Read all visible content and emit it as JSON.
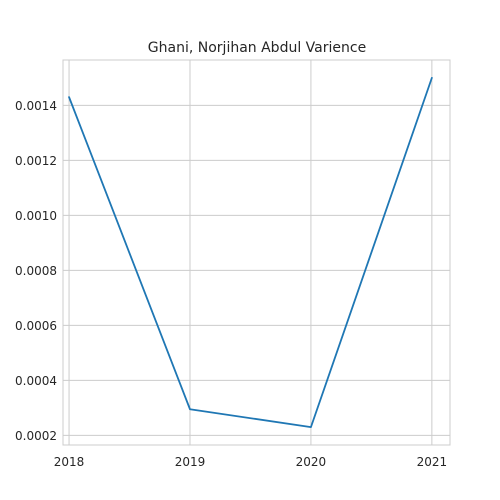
{
  "chart_data": {
    "type": "line",
    "title": "Ghani, Norjihan Abdul Varience",
    "xlabel": "",
    "ylabel": "",
    "x": [
      2018,
      2019,
      2020,
      2021
    ],
    "x_tick_labels": [
      "2018",
      "2019",
      "2020",
      "2021"
    ],
    "series": [
      {
        "values": [
          0.00143,
          0.000295,
          0.00023,
          0.0015
        ],
        "color": "#1f77b4"
      }
    ],
    "xlim": [
      2017.95,
      2021.15
    ],
    "ylim": [
      0.000165,
      0.001565
    ],
    "y_ticks": [
      0.0002,
      0.0004,
      0.0006,
      0.0008,
      0.001,
      0.0012,
      0.0014
    ],
    "y_tick_labels": [
      "0.0002",
      "0.0004",
      "0.0006",
      "0.0008",
      "0.0010",
      "0.0012",
      "0.0014"
    ],
    "grid": true,
    "legend": "none"
  }
}
